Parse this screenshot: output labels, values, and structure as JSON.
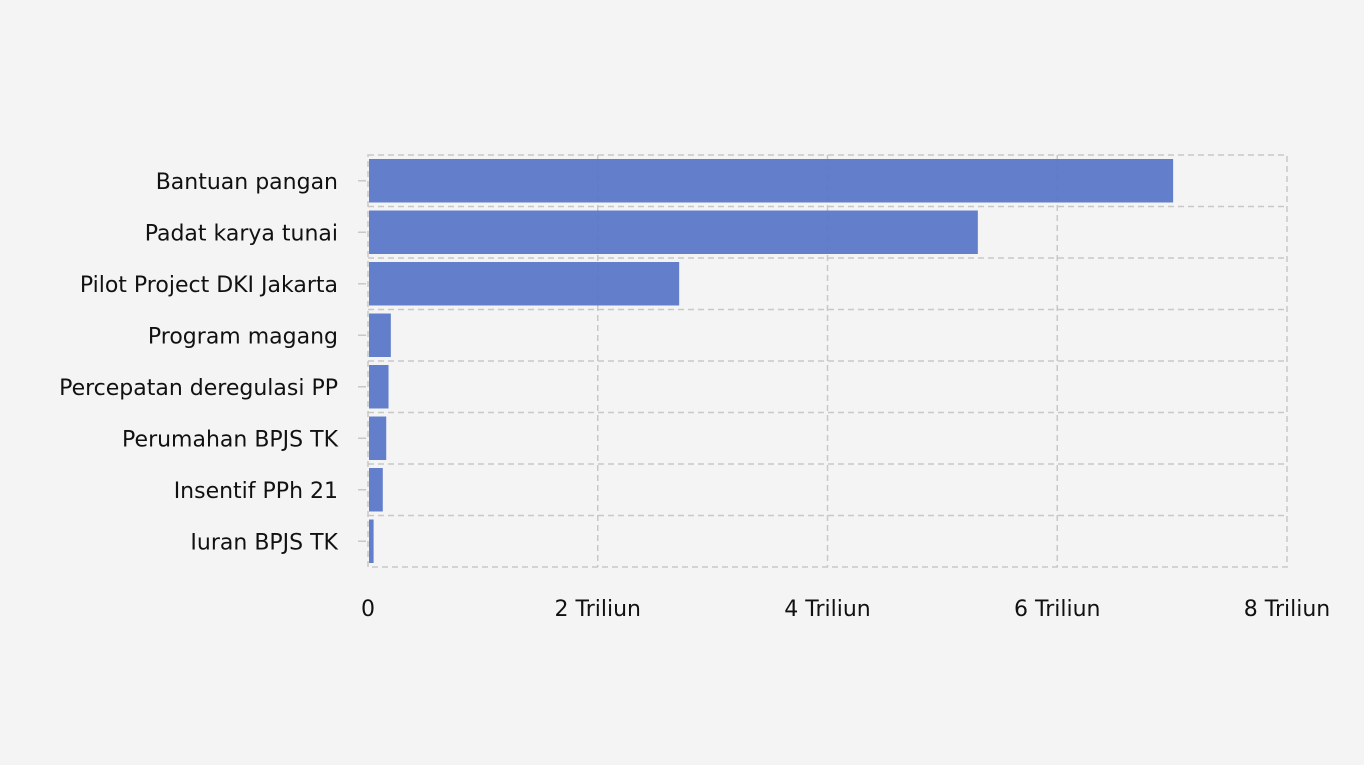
{
  "chart_data": {
    "type": "bar",
    "orientation": "horizontal",
    "title": "",
    "xlabel": "",
    "ylabel": "",
    "categories": [
      "Bantuan pangan",
      "Padat karya tunai",
      "Pilot Project DKI Jakarta",
      "Program magang",
      "Percepatan deregulasi PP",
      "Perumahan BPJS TK",
      "Insentif PPh 21",
      "Iuran BPJS TK"
    ],
    "values": [
      7.0,
      5.3,
      2.7,
      0.19,
      0.17,
      0.15,
      0.12,
      0.04
    ],
    "value_unit": "Triliun",
    "xlim": [
      0,
      8
    ],
    "x_ticks": [
      0,
      2,
      4,
      6,
      8
    ],
    "x_tick_labels": [
      "0",
      "2 Triliun",
      "4 Triliun",
      "6 Triliun",
      "8 Triliun"
    ],
    "grid": true,
    "legend": "none",
    "bar_color": "#5b78c8"
  }
}
